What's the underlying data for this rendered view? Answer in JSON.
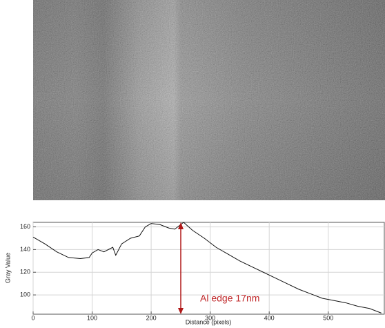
{
  "chart_data": {
    "type": "line",
    "x_label": "Distance (pixels)",
    "y_label": "Gray Value",
    "annotation": "Al edge 17nm",
    "x": [
      0,
      20,
      40,
      60,
      80,
      95,
      100,
      110,
      120,
      135,
      140,
      150,
      165,
      180,
      190,
      200,
      215,
      230,
      240,
      250,
      255,
      270,
      290,
      310,
      330,
      350,
      370,
      390,
      410,
      430,
      450,
      470,
      490,
      510,
      530,
      550,
      570,
      590
    ],
    "values": [
      151,
      145,
      138,
      133,
      132,
      133,
      137,
      140,
      138,
      142,
      135,
      145,
      150,
      152,
      160,
      163,
      162,
      159,
      158,
      162,
      164,
      157,
      150,
      142,
      136,
      130,
      125,
      120,
      115,
      110,
      105,
      101,
      97,
      95,
      93,
      90,
      88,
      84
    ],
    "color": "#111111",
    "xlim": [
      0,
      595
    ],
    "xticks": [
      0,
      100,
      200,
      300,
      400,
      500
    ],
    "ylim": [
      83,
      164
    ],
    "yticks": [
      100,
      120,
      140,
      160
    ],
    "grid": true
  }
}
